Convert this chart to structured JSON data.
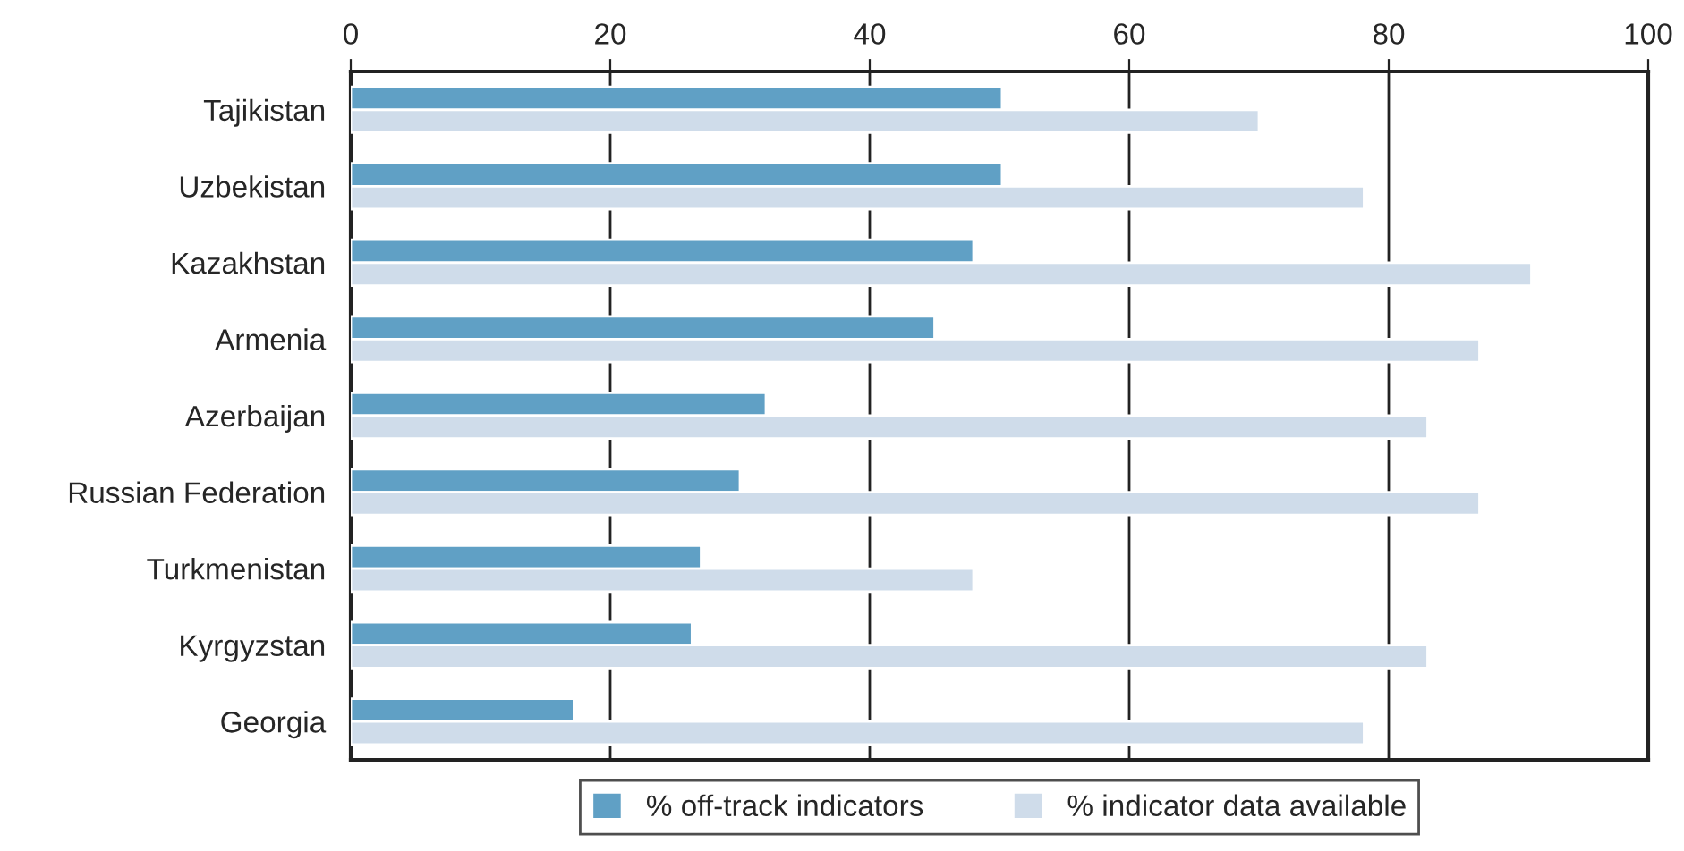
{
  "chart_data": {
    "type": "bar",
    "orientation": "horizontal",
    "categories": [
      "Tajikistan",
      "Uzbekistan",
      "Kazakhstan",
      "Armenia",
      "Azerbaijan",
      "Russian Federation",
      "Turkmenistan",
      "Kyrgyzstan",
      "Georgia"
    ],
    "series": [
      {
        "name": "% off-track indicators",
        "color": "#60a0c5",
        "values": [
          50.2,
          50.2,
          48,
          45,
          32,
          30,
          27,
          26.3,
          17.2
        ]
      },
      {
        "name": "% indicator data available",
        "color": "#cfdcea",
        "values": [
          70,
          78.1,
          91,
          87,
          83,
          87,
          48,
          83,
          78.1
        ]
      }
    ],
    "xlim": [
      0,
      100
    ],
    "xticks": [
      0,
      20,
      40,
      60,
      80,
      100
    ],
    "grid": "x",
    "legend": "bottom"
  }
}
